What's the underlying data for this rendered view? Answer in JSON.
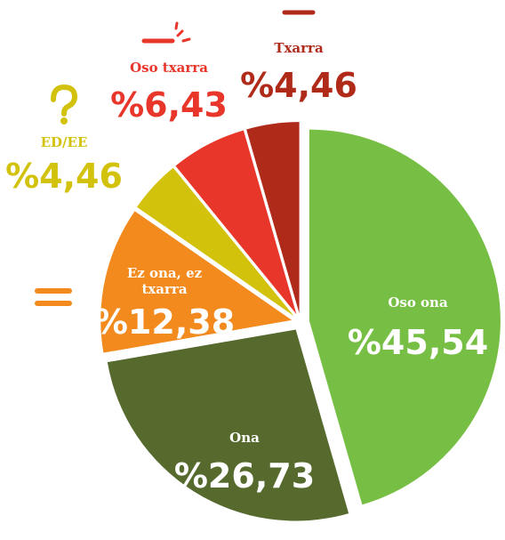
{
  "chart_data": {
    "type": "pie",
    "categories": [
      "Oso ona",
      "Ona",
      "Ez ona, ez txarra",
      "ED/EE",
      "Oso txarra",
      "Txarra"
    ],
    "values": [
      45.54,
      26.73,
      12.38,
      4.46,
      6.43,
      4.46
    ],
    "value_labels": [
      "%45,54",
      "%26,73",
      "%12,38",
      "%4,46",
      "%6,43",
      "%4,46"
    ],
    "colors": [
      "#76bf44",
      "#566a2e",
      "#f28a1e",
      "#d2c20c",
      "#e8362a",
      "#b02a1a"
    ]
  }
}
